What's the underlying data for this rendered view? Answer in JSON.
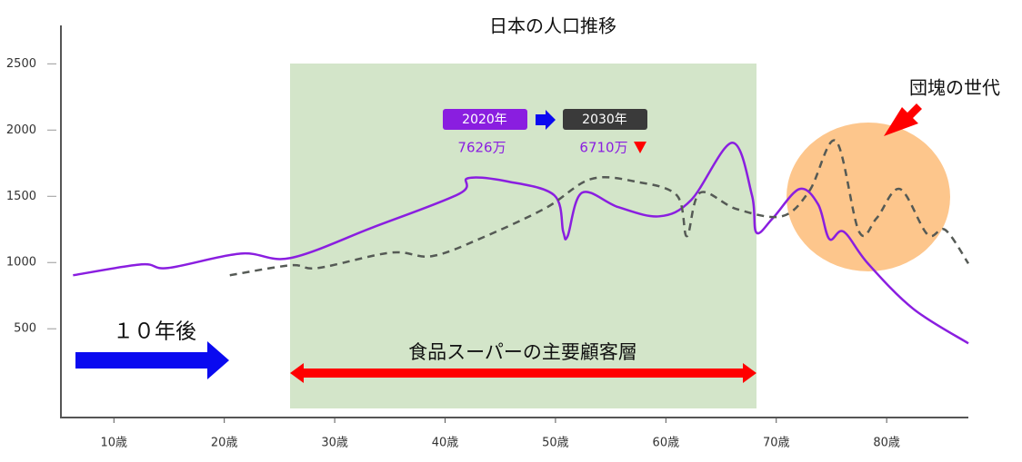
{
  "chart_data": {
    "type": "line",
    "title": "日本の人口推移",
    "xlim": [
      5.2,
      87.4
    ],
    "xticks": [
      {
        "value": 10,
        "label": "10歳"
      },
      {
        "value": 20,
        "label": "20歳"
      },
      {
        "value": 30,
        "label": "30歳"
      },
      {
        "value": 40,
        "label": "40歳"
      },
      {
        "value": 50,
        "label": "50歳"
      },
      {
        "value": 60,
        "label": "60歳"
      },
      {
        "value": 70,
        "label": "70歳"
      },
      {
        "value": 80,
        "label": "80歳"
      }
    ],
    "ylim": [
      -170,
      2790
    ],
    "yticks": [
      500,
      1000,
      1500,
      2000,
      2500
    ],
    "series": [
      {
        "name": "2020年",
        "color": "#8a1ee0",
        "dashed": false,
        "x": [
          6.3,
          12.5,
          14.9,
          21.5,
          26,
          33.5,
          41.3,
          42.1,
          45.8,
          49.9,
          50.7,
          51.1,
          52.4,
          55.7,
          59.4,
          62.3,
          66,
          67.8,
          68.2,
          69.7,
          72.1,
          73.8,
          74.8,
          76.1,
          78.3,
          82.4,
          87.4
        ],
        "values": [
          904,
          986,
          959,
          1068,
          1034,
          1267,
          1520,
          1637,
          1610,
          1507,
          1233,
          1199,
          1527,
          1418,
          1349,
          1473,
          1904,
          1507,
          1226,
          1336,
          1555,
          1438,
          1178,
          1233,
          993,
          651,
          390
        ],
        "total_label": "7626万"
      },
      {
        "name": "2030年",
        "color": "#555a55",
        "dashed": true,
        "x": [
          20.5,
          26,
          28.5,
          35.1,
          38.8,
          43.3,
          49.1,
          53.2,
          57.3,
          61,
          61.9,
          63.1,
          66.4,
          70.5,
          73,
          75.4,
          77.5,
          79.1,
          81.2,
          83.7,
          85.3,
          87.4
        ],
        "values": [
          904,
          979,
          959,
          1075,
          1048,
          1185,
          1411,
          1630,
          1610,
          1507,
          1199,
          1527,
          1404,
          1349,
          1541,
          1918,
          1233,
          1336,
          1555,
          1212,
          1247,
          993
        ],
        "total_label": "6710万"
      }
    ],
    "annotations": {
      "ten_years": "１０年後",
      "customers": "食品スーパーの主要顧客層",
      "baby_boomers": "団塊の世代"
    }
  }
}
